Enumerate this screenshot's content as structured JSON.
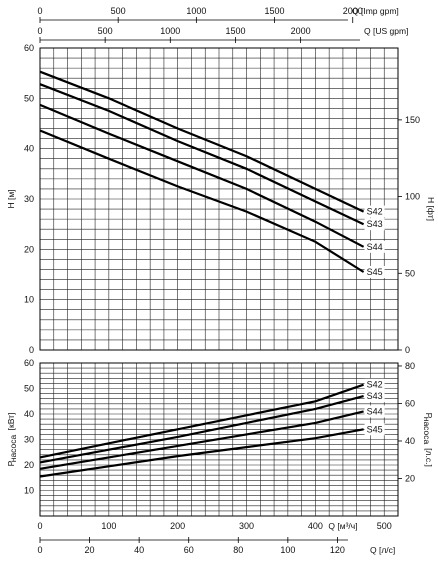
{
  "chart_data": [
    {
      "type": "line",
      "panel": "head",
      "top_axes": [
        {
          "label": "Q [Imp gpm]",
          "ticks": [
            0,
            500,
            1000,
            1500,
            2000
          ]
        },
        {
          "label": "Q [US gpm]",
          "ticks": [
            0,
            500,
            1000,
            1500,
            2000
          ]
        }
      ],
      "ylabel_left": "H [м]",
      "ylim_left": [
        0,
        60
      ],
      "yticks_left": [
        0,
        10,
        20,
        30,
        40,
        50,
        60
      ],
      "ylabel_right": "H [фт]",
      "yticks_right": [
        0,
        50,
        100,
        150
      ],
      "xlim_m3h": [
        0,
        520
      ],
      "grid": true,
      "series": [
        {
          "name": "S42",
          "x": [
            0,
            100,
            200,
            300,
            400,
            470
          ],
          "y": [
            55.3,
            50,
            44,
            38.5,
            32,
            27.5
          ]
        },
        {
          "name": "S43",
          "x": [
            0,
            100,
            200,
            300,
            400,
            470
          ],
          "y": [
            52.8,
            47.5,
            41.5,
            36,
            29.5,
            25
          ]
        },
        {
          "name": "S44",
          "x": [
            0,
            100,
            200,
            300,
            400,
            470
          ],
          "y": [
            48.7,
            43,
            37.5,
            32,
            25.5,
            20.5
          ]
        },
        {
          "name": "S45",
          "x": [
            0,
            100,
            200,
            300,
            400,
            470
          ],
          "y": [
            43.6,
            38,
            32.5,
            27.5,
            21.5,
            15.5
          ]
        }
      ]
    },
    {
      "type": "line",
      "panel": "power",
      "ylabel_left": "P насоса [кВт]",
      "ylim_left": [
        0,
        60
      ],
      "yticks_left": [
        10,
        20,
        30,
        40,
        50,
        60
      ],
      "ylabel_right": "P насоса [л.с.]",
      "yticks_right": [
        20,
        40,
        60,
        80
      ],
      "xlabel": "Q [м³/ч]",
      "xticks": [
        0,
        100,
        200,
        300,
        400,
        500
      ],
      "xlabel_bottom": "Q [л/с]",
      "xticks_bottom": [
        0,
        20,
        40,
        60,
        80,
        100,
        120
      ],
      "xlim_m3h": [
        0,
        520
      ],
      "grid": true,
      "series": [
        {
          "name": "S42",
          "x": [
            0,
            100,
            200,
            300,
            400,
            470
          ],
          "y": [
            23,
            28.5,
            34,
            39.5,
            45,
            51.5
          ]
        },
        {
          "name": "S43",
          "x": [
            0,
            100,
            200,
            300,
            400,
            470
          ],
          "y": [
            21,
            26,
            31,
            36.5,
            42,
            47
          ]
        },
        {
          "name": "S44",
          "x": [
            0,
            100,
            200,
            300,
            400,
            470
          ],
          "y": [
            18.5,
            23,
            27.5,
            32,
            36.5,
            41
          ]
        },
        {
          "name": "S45",
          "x": [
            0,
            100,
            200,
            300,
            400,
            470
          ],
          "y": [
            15.5,
            19.5,
            23.5,
            27,
            30.5,
            34
          ]
        }
      ]
    }
  ],
  "labels": {
    "top_axis_1": "Q [Imp gpm]",
    "top_axis_2": "Q [US gpm]",
    "head_left": "H [м]",
    "head_right": "H [фт]",
    "power_left_main": "P",
    "power_left_sub": "насоса",
    "power_left_unit": "[кВт]",
    "power_right_main": "P",
    "power_right_sub": "насоса",
    "power_right_unit": "[л.с.]",
    "bottom_axis_1": "Q [м³/ч]",
    "bottom_axis_2": "Q [л/с]"
  }
}
